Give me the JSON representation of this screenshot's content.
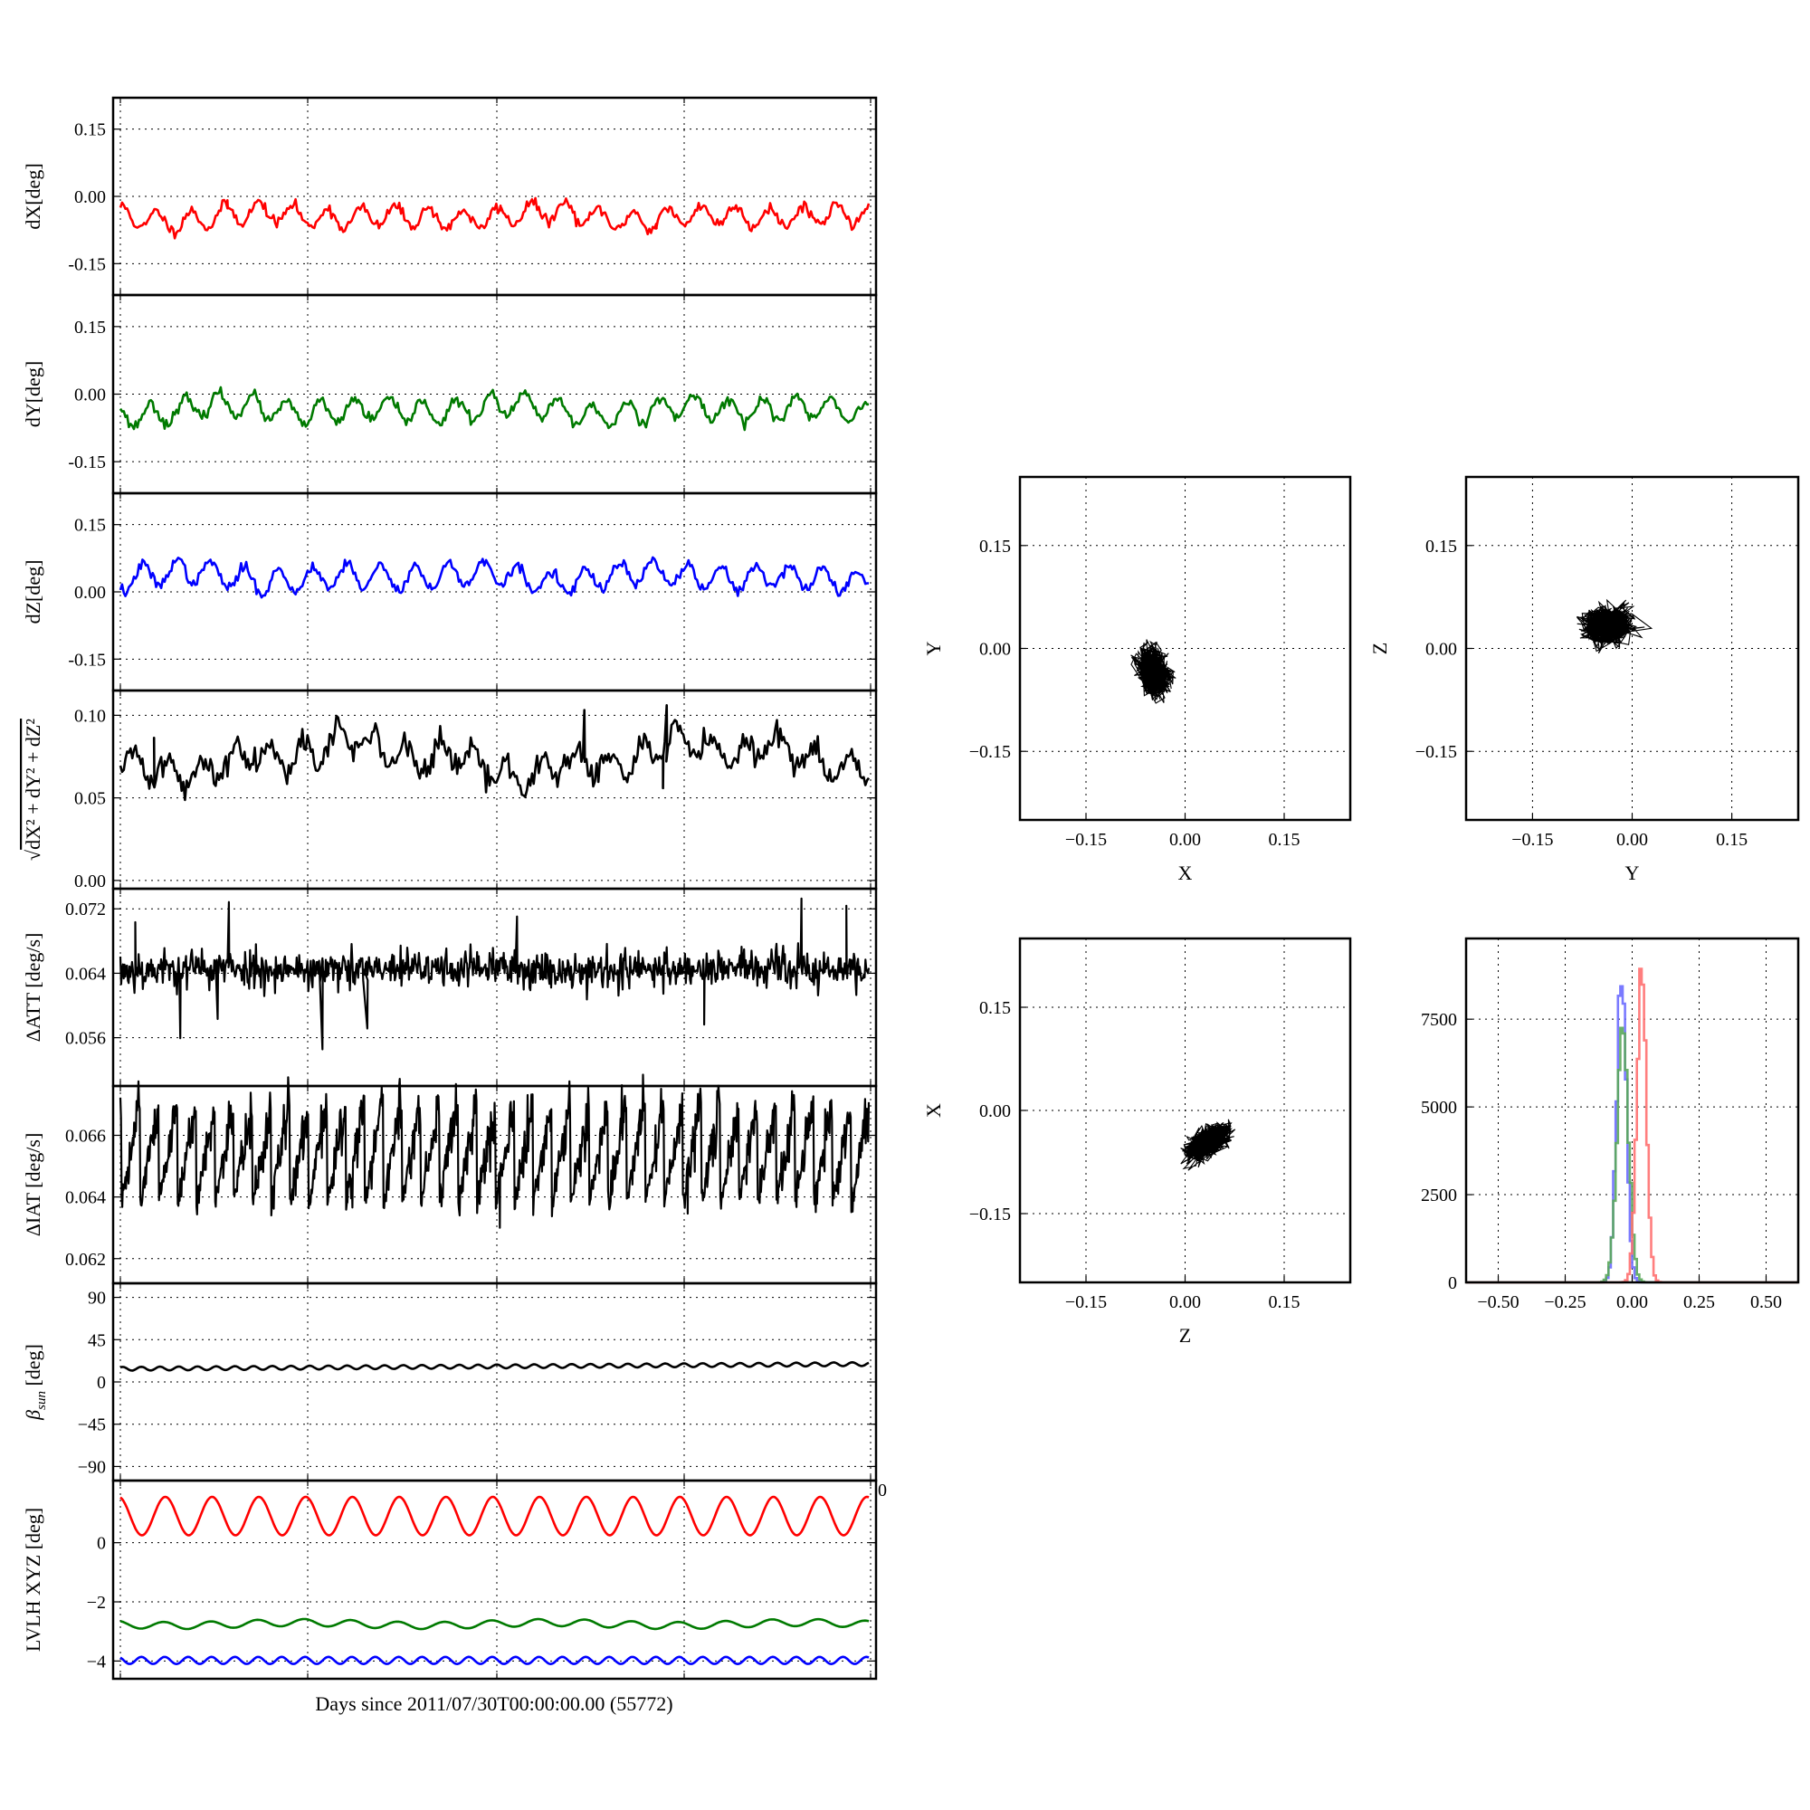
{
  "figure": {
    "xlabel": "Days since 2011/07/30T00:00:00.00 (55772)",
    "corner_tick": "0"
  },
  "chart_data": [
    {
      "id": "dX",
      "type": "line",
      "ylabel": "dX[deg]",
      "ylim": [
        -0.22,
        0.22
      ],
      "yticks": [
        "0.15",
        "0.00",
        "-0.15"
      ],
      "ytick_values": [
        0.15,
        0.0,
        -0.15
      ],
      "grid": true,
      "color": "#ff0000",
      "n": 440,
      "base": -0.045,
      "waves": [
        [
          22,
          0.022
        ],
        [
          5,
          0.007
        ],
        [
          3,
          0.005
        ]
      ],
      "noise": 0.006,
      "seed": 11,
      "spikes": [
        [
          0.143,
          0.018
        ],
        [
          0.508,
          0.01
        ],
        [
          0.716,
          0.01
        ]
      ]
    },
    {
      "id": "dY",
      "type": "line",
      "ylabel": "dY[deg]",
      "ylim": [
        -0.22,
        0.22
      ],
      "yticks": [
        "0.15",
        "0.00",
        "-0.15"
      ],
      "ytick_values": [
        0.15,
        0.0,
        -0.15
      ],
      "grid": true,
      "color": "#007a00",
      "n": 440,
      "base": -0.035,
      "waves": [
        [
          22,
          0.025
        ],
        [
          5,
          0.008
        ],
        [
          3,
          0.006
        ]
      ],
      "noise": 0.006,
      "seed": 23,
      "spikes": []
    },
    {
      "id": "dZ",
      "type": "line",
      "ylabel": "dZ[deg]",
      "ylim": [
        -0.22,
        0.22
      ],
      "yticks": [
        "0.15",
        "0.00",
        "-0.15"
      ],
      "ytick_values": [
        0.15,
        0.0,
        -0.15
      ],
      "grid": true,
      "color": "#0000ff",
      "n": 440,
      "base": 0.033,
      "waves": [
        [
          22,
          0.027
        ],
        [
          5,
          0.008
        ],
        [
          3,
          0.006
        ]
      ],
      "noise": 0.006,
      "seed": 37,
      "spikes": []
    },
    {
      "id": "dR",
      "type": "line",
      "ylabel_tex": true,
      "ylim": [
        -0.005,
        0.115
      ],
      "yticks": [
        "0.10",
        "0.05",
        "0.00"
      ],
      "ytick_values": [
        0.1,
        0.05,
        0.0
      ],
      "grid": true,
      "color": "#000000",
      "n": 440,
      "base": 0.074,
      "waves": [
        [
          2,
          0.008
        ],
        [
          22,
          0.008
        ],
        [
          7,
          0.004
        ]
      ],
      "noise": 0.004,
      "seed": 41,
      "spikes": [
        [
          0.045,
          0.03
        ],
        [
          0.62,
          0.028
        ],
        [
          0.73,
          0.022
        ],
        [
          0.725,
          -0.02
        ]
      ]
    },
    {
      "id": "dATT",
      "type": "line",
      "ylabel": "ΔATT [deg/s]",
      "ylim": [
        0.05,
        0.0745
      ],
      "yticks": [
        "0.072",
        "0.064",
        "0.056"
      ],
      "ytick_values": [
        0.072,
        0.064,
        0.056
      ],
      "grid": true,
      "color": "#000000",
      "n": 900,
      "base": 0.0645,
      "waves": [
        [
          3,
          0.00015
        ]
      ],
      "noise": 0.0012,
      "seed": 53,
      "spikes": [
        [
          0.02,
          0.0062
        ],
        [
          0.145,
          0.0075
        ],
        [
          0.53,
          0.007
        ],
        [
          0.91,
          0.008
        ],
        [
          0.97,
          0.0075
        ],
        [
          0.08,
          -0.0075
        ],
        [
          0.13,
          -0.0055
        ],
        [
          0.27,
          -0.011
        ],
        [
          0.33,
          -0.006
        ],
        [
          0.78,
          -0.0055
        ]
      ]
    },
    {
      "id": "dIAT",
      "type": "line",
      "style": "sawtooth",
      "ylabel": "ΔIAT [deg/s]",
      "ylim": [
        0.0612,
        0.0676
      ],
      "yticks": [
        "0.066",
        "0.064",
        "0.062"
      ],
      "ytick_values": [
        0.066,
        0.064,
        0.062
      ],
      "grid": true,
      "color": "#000000",
      "teeth": 40,
      "low": 0.0636,
      "high": 0.0669,
      "noise": 0.00035,
      "seed": 61,
      "spikes": [
        [
          0.507,
          -0.0018
        ],
        [
          0.758,
          -0.0016
        ]
      ]
    },
    {
      "id": "beta",
      "type": "line",
      "ylabel_tex": true,
      "ylim": [
        -105,
        105
      ],
      "yticks": [
        "90",
        "45",
        "0",
        "−45",
        "−90"
      ],
      "ytick_values": [
        90,
        45,
        0,
        -45,
        -90
      ],
      "grid": true,
      "color": "#000000",
      "n": 600,
      "base": 14,
      "trend": 5,
      "waves": [
        [
          40,
          2
        ]
      ],
      "noise": 0,
      "seed": 71,
      "spikes": []
    },
    {
      "id": "lvlh",
      "type": "line",
      "ylabel": "LVLH XYZ [deg]",
      "ylim": [
        -4.6,
        2.1
      ],
      "yticks": [
        "0",
        "−2",
        "−4"
      ],
      "ytick_values": [
        0,
        -2,
        -4
      ],
      "grid": true,
      "series": [
        {
          "color": "#ff0000",
          "n": 600,
          "base": 0.9,
          "waves": [
            [
              16,
              0.65
            ]
          ],
          "noise": 0,
          "seed": 81
        },
        {
          "color": "#007a00",
          "n": 600,
          "base": -2.75,
          "waves": [
            [
              16,
              0.12
            ],
            [
              3,
              0.05
            ]
          ],
          "noise": 0,
          "seed": 83
        },
        {
          "color": "#0000ff",
          "n": 600,
          "base": -3.98,
          "waves": [
            [
              32,
              0.12
            ]
          ],
          "noise": 0,
          "seed": 85
        }
      ]
    },
    {
      "id": "XY",
      "type": "scatter",
      "xlabel": "X",
      "ylabel": "Y",
      "xlim": [
        -0.25,
        0.25
      ],
      "ylim": [
        -0.25,
        0.25
      ],
      "ticks": [
        "−0.15",
        "0.00",
        "0.15"
      ],
      "tick_values": [
        -0.15,
        0.0,
        0.15
      ],
      "grid": true,
      "color": "#000000",
      "center": [
        -0.047,
        -0.035
      ],
      "spread": [
        0.013,
        0.018
      ],
      "corr": -0.35,
      "n": 1200,
      "seed": 91
    },
    {
      "id": "YZ",
      "type": "scatter",
      "xlabel": "Y",
      "ylabel": "Z",
      "xlim": [
        -0.25,
        0.25
      ],
      "ylim": [
        -0.25,
        0.25
      ],
      "ticks": [
        "−0.15",
        "0.00",
        "0.15"
      ],
      "tick_values": [
        -0.15,
        0.0,
        0.15
      ],
      "grid": true,
      "color": "#000000",
      "center": [
        -0.037,
        0.035
      ],
      "spread": [
        0.018,
        0.014
      ],
      "corr": 0.1,
      "n": 1200,
      "seed": 93
    },
    {
      "id": "ZX",
      "type": "scatter",
      "xlabel": "Z",
      "ylabel": "X",
      "xlim": [
        -0.25,
        0.25
      ],
      "ylim": [
        -0.25,
        0.25
      ],
      "ticks": [
        "−0.15",
        "0.00",
        "0.15"
      ],
      "tick_values": [
        -0.15,
        0.0,
        0.15
      ],
      "grid": true,
      "color": "#000000",
      "center": [
        0.035,
        -0.047
      ],
      "spread": [
        0.016,
        0.013
      ],
      "corr": 0.5,
      "n": 1200,
      "seed": 95
    },
    {
      "id": "hist",
      "type": "histogram",
      "xlim": [
        -0.62,
        0.62
      ],
      "ylim": [
        0,
        9800
      ],
      "xticks": [
        "−0.50",
        "−0.25",
        "0.00",
        "0.25",
        "0.50"
      ],
      "xtick_values": [
        -0.5,
        -0.25,
        0.0,
        0.25,
        0.5
      ],
      "yticks": [
        "0",
        "2500",
        "5000",
        "7500"
      ],
      "ytick_values": [
        0,
        2500,
        5000,
        7500
      ],
      "grid": true,
      "series": [
        {
          "color": "#6b6bff",
          "center": -0.04,
          "sigma": 0.018,
          "peak": 9650
        },
        {
          "color": "#5aa85a",
          "center": -0.035,
          "sigma": 0.022,
          "peak": 7450
        },
        {
          "color": "#ff7070",
          "center": 0.035,
          "sigma": 0.018,
          "peak": 9650
        }
      ]
    }
  ]
}
